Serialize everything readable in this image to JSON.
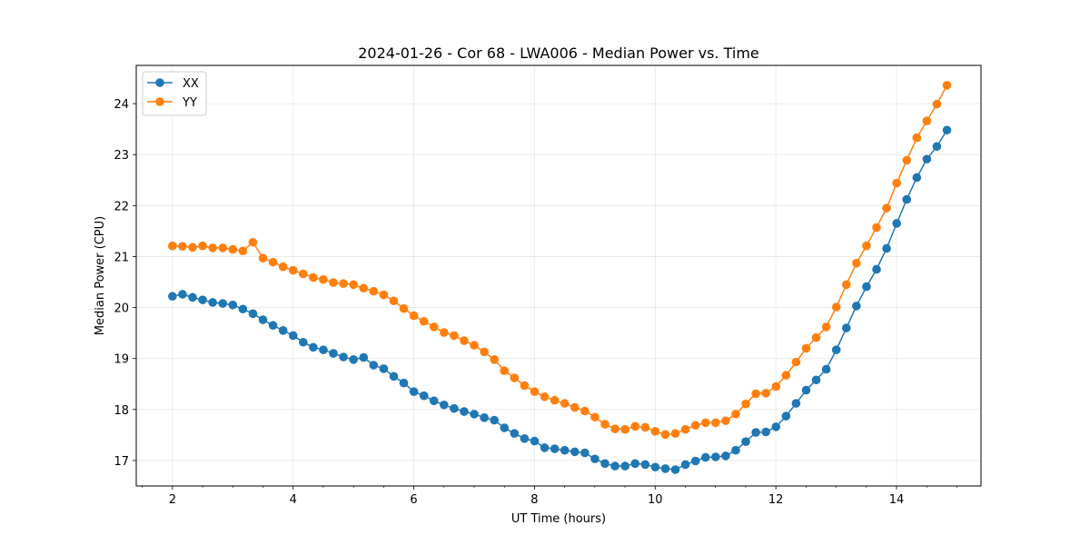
{
  "chart_data": {
    "type": "line",
    "title": "2024-01-26 - Cor 68 - LWA006 - Median Power vs. Time",
    "xlabel": "UT Time (hours)",
    "ylabel": "Median Power (CPU)",
    "xlim": [
      1.4,
      15.4
    ],
    "ylim": [
      16.5,
      24.75
    ],
    "xticks": [
      2,
      4,
      6,
      8,
      10,
      12,
      14
    ],
    "xticklabels": [
      "2",
      "4",
      "6",
      "8",
      "10",
      "12",
      "14"
    ],
    "xminor": [
      1.5,
      2.5,
      3,
      3.5,
      4.5,
      5,
      5.5,
      6.5,
      7,
      7.5,
      8.5,
      9,
      9.5,
      10.5,
      11,
      11.5,
      12.5,
      13,
      13.5,
      14.5,
      15
    ],
    "yticks": [
      17,
      18,
      19,
      20,
      21,
      22,
      23,
      24
    ],
    "yticklabels": [
      "17",
      "18",
      "19",
      "20",
      "21",
      "22",
      "23",
      "24"
    ],
    "grid": true,
    "legend_position": "top-left",
    "x_start": 2.0,
    "x_step": 0.1667,
    "series": [
      {
        "name": "XX",
        "color": "#1f77b4",
        "values": [
          20.22,
          20.26,
          20.2,
          20.15,
          20.1,
          20.08,
          20.05,
          19.97,
          19.88,
          19.76,
          19.65,
          19.55,
          19.45,
          19.32,
          19.22,
          19.17,
          19.1,
          19.03,
          18.98,
          19.02,
          18.87,
          18.8,
          18.65,
          18.52,
          18.35,
          18.27,
          18.17,
          18.09,
          18.02,
          17.96,
          17.91,
          17.84,
          17.79,
          17.64,
          17.53,
          17.43,
          17.38,
          17.25,
          17.23,
          17.2,
          17.17,
          17.15,
          17.03,
          16.94,
          16.89,
          16.89,
          16.94,
          16.92,
          16.87,
          16.84,
          16.82,
          16.92,
          16.99,
          17.06,
          17.07,
          17.09,
          17.2,
          17.37,
          17.55,
          17.56,
          17.66,
          17.87,
          18.12,
          18.38,
          18.58,
          18.79,
          19.17,
          19.6,
          20.03,
          20.41,
          20.75,
          21.16,
          21.65,
          22.12,
          22.55,
          22.91,
          23.16,
          23.48
        ]
      },
      {
        "name": "YY",
        "color": "#ff7f0e",
        "values": [
          21.21,
          21.2,
          21.18,
          21.21,
          21.17,
          21.17,
          21.14,
          21.11,
          21.28,
          20.97,
          20.89,
          20.8,
          20.73,
          20.66,
          20.59,
          20.55,
          20.49,
          20.47,
          20.45,
          20.38,
          20.32,
          20.25,
          20.13,
          19.98,
          19.84,
          19.73,
          19.62,
          19.51,
          19.45,
          19.35,
          19.26,
          19.13,
          18.98,
          18.76,
          18.62,
          18.47,
          18.35,
          18.25,
          18.18,
          18.12,
          18.04,
          17.97,
          17.85,
          17.71,
          17.62,
          17.61,
          17.67,
          17.65,
          17.57,
          17.51,
          17.53,
          17.61,
          17.69,
          17.74,
          17.74,
          17.78,
          17.91,
          18.11,
          18.31,
          18.32,
          18.45,
          18.67,
          18.93,
          19.2,
          19.41,
          19.62,
          20.01,
          20.45,
          20.87,
          21.21,
          21.57,
          21.95,
          22.44,
          22.89,
          23.33,
          23.66,
          23.99,
          24.36
        ]
      }
    ]
  }
}
